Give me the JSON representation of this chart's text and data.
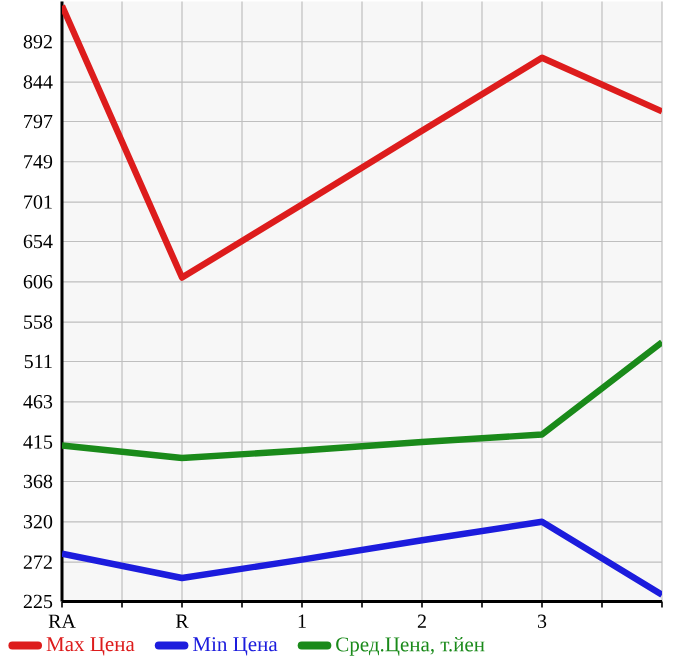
{
  "chart_data": {
    "type": "line",
    "categories": [
      "RA",
      "R",
      "1",
      "2",
      "3",
      null
    ],
    "series": [
      {
        "name": "Max Цена",
        "color": "#dd1c1c",
        "values": [
          935,
          611,
          698,
          786,
          873,
          809
        ]
      },
      {
        "name": "Min Цена",
        "color": "#1c1cdd",
        "values": [
          282,
          253,
          275,
          298,
          320,
          233
        ]
      },
      {
        "name": "Сред.Цена, т.йен",
        "color": "#1a8a1a",
        "values": [
          411,
          396,
          405,
          415,
          424,
          534
        ]
      }
    ],
    "ylim": [
      225,
      940
    ],
    "yticks": [
      225,
      272,
      320,
      368,
      415,
      463,
      511,
      558,
      606,
      654,
      701,
      749,
      797,
      844,
      892
    ],
    "grid": true,
    "legend": "bottom",
    "marker": "none",
    "line_style": "solid"
  }
}
